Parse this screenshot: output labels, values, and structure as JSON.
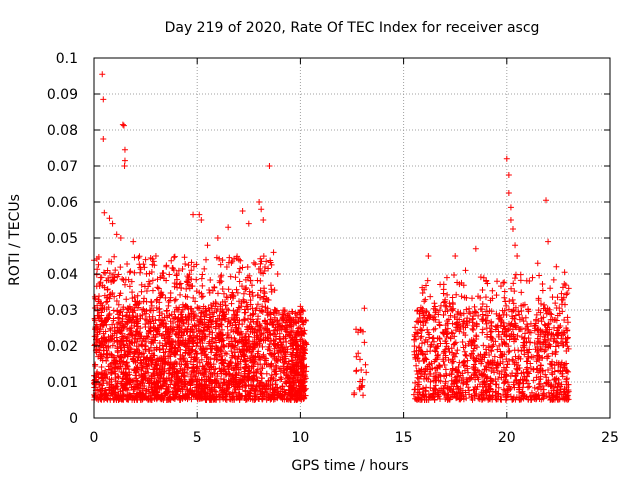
{
  "chart_data": {
    "type": "scatter",
    "title": "Day 219 of 2020, Rate Of TEC Index for receiver ascg",
    "xlabel": "GPS time / hours",
    "ylabel": "ROTI / TECUs",
    "xlim": [
      0,
      25
    ],
    "ylim": [
      0,
      0.1
    ],
    "x_ticks": [
      0,
      5,
      10,
      15,
      20,
      25
    ],
    "x_tick_labels": [
      "0",
      "5",
      "10",
      "15",
      "20",
      "25"
    ],
    "y_ticks": [
      0,
      0.01,
      0.02,
      0.03,
      0.04,
      0.05,
      0.06,
      0.07,
      0.08,
      0.09,
      0.1
    ],
    "y_tick_labels": [
      "0",
      "0.01",
      "0.02",
      "0.03",
      "0.04",
      "0.05",
      "0.06",
      "0.07",
      "0.08",
      "0.09",
      "0.1"
    ],
    "grid": true,
    "marker": "plus",
    "color": "#ff0000",
    "density_bands": [
      {
        "x": [
          0.0,
          10.2
        ],
        "y": [
          0.005,
          0.03
        ],
        "weight": 2600
      },
      {
        "x": [
          0.0,
          8.8
        ],
        "y": [
          0.03,
          0.045
        ],
        "weight": 380
      },
      {
        "x": [
          9.5,
          10.3
        ],
        "y": [
          0.006,
          0.03
        ],
        "weight": 140
      },
      {
        "x": [
          12.6,
          13.2
        ],
        "y": [
          0.006,
          0.025
        ],
        "weight": 18
      },
      {
        "x": [
          15.5,
          23.0
        ],
        "y": [
          0.005,
          0.03
        ],
        "weight": 1200
      },
      {
        "x": [
          15.8,
          23.0
        ],
        "y": [
          0.03,
          0.04
        ],
        "weight": 120
      }
    ],
    "points": [
      [
        0.4,
        0.0955
      ],
      [
        0.45,
        0.0885
      ],
      [
        0.45,
        0.0775
      ],
      [
        1.4,
        0.0815
      ],
      [
        1.45,
        0.0812
      ],
      [
        1.5,
        0.0745
      ],
      [
        1.5,
        0.0715
      ],
      [
        1.48,
        0.07
      ],
      [
        0.5,
        0.057
      ],
      [
        0.75,
        0.0555
      ],
      [
        0.9,
        0.054
      ],
      [
        1.1,
        0.051
      ],
      [
        1.3,
        0.05
      ],
      [
        1.9,
        0.049
      ],
      [
        2.5,
        0.044
      ],
      [
        3.0,
        0.045
      ],
      [
        3.5,
        0.042
      ],
      [
        4.8,
        0.0565
      ],
      [
        5.1,
        0.0565
      ],
      [
        5.2,
        0.055
      ],
      [
        5.5,
        0.048
      ],
      [
        6.0,
        0.05
      ],
      [
        6.5,
        0.053
      ],
      [
        7.2,
        0.0575
      ],
      [
        7.5,
        0.054
      ],
      [
        8.0,
        0.06
      ],
      [
        8.1,
        0.058
      ],
      [
        8.2,
        0.055
      ],
      [
        8.5,
        0.07
      ],
      [
        8.7,
        0.046
      ],
      [
        8.9,
        0.04
      ],
      [
        10.0,
        0.031
      ],
      [
        10.1,
        0.03
      ],
      [
        12.6,
        0.0065
      ],
      [
        12.7,
        0.013
      ],
      [
        12.8,
        0.018
      ],
      [
        12.9,
        0.0245
      ],
      [
        13.0,
        0.009
      ],
      [
        13.1,
        0.0305
      ],
      [
        13.1,
        0.021
      ],
      [
        15.5,
        0.0065
      ],
      [
        16.2,
        0.045
      ],
      [
        17.1,
        0.039
      ],
      [
        17.5,
        0.045
      ],
      [
        18.0,
        0.041
      ],
      [
        18.5,
        0.047
      ],
      [
        19.0,
        0.038
      ],
      [
        20.0,
        0.072
      ],
      [
        20.1,
        0.0675
      ],
      [
        20.1,
        0.0625
      ],
      [
        20.2,
        0.0585
      ],
      [
        20.2,
        0.055
      ],
      [
        20.3,
        0.0525
      ],
      [
        20.4,
        0.048
      ],
      [
        20.5,
        0.045
      ],
      [
        21.5,
        0.043
      ],
      [
        21.9,
        0.0605
      ],
      [
        22.0,
        0.049
      ],
      [
        22.4,
        0.042
      ],
      [
        22.8,
        0.0405
      ],
      [
        23.0,
        0.036
      ]
    ]
  }
}
